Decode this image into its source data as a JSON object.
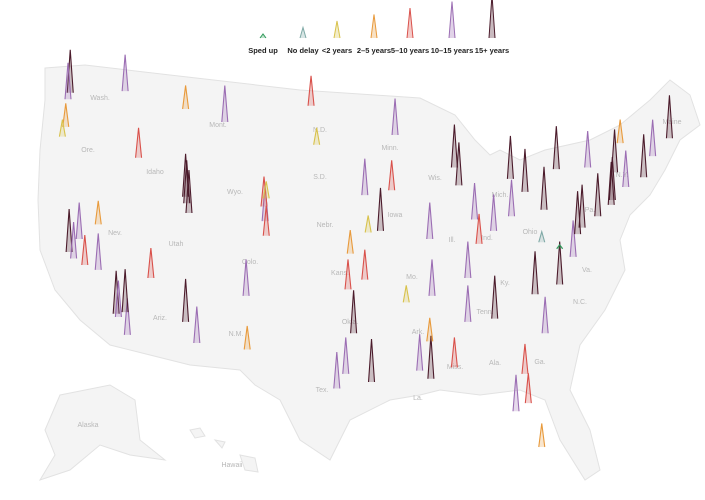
{
  "legend": [
    {
      "label": "Sped up",
      "color": "#2f9a5a"
    },
    {
      "label": "No delay",
      "color": "#7fa9a6"
    },
    {
      "label": "<2 years",
      "color": "#d8c24c"
    },
    {
      "label": "2–5 years",
      "color": "#e89a3c"
    },
    {
      "label": "5–10 years",
      "color": "#d9504a"
    },
    {
      "label": "10–15 years",
      "color": "#9b6db3"
    },
    {
      "label": "15+ years",
      "color": "#4b1b2b"
    }
  ],
  "states": [
    "Wash.",
    "Ore.",
    "Idaho",
    "Mont.",
    "Wyo.",
    "Nev.",
    "Utah",
    "Colo.",
    "N.D.",
    "S.D.",
    "Nebr.",
    "Kans.",
    "Minn.",
    "Iowa",
    "Mo.",
    "Okla.",
    "Ariz.",
    "N.M.",
    "Tex.",
    "Ark.",
    "La.",
    "Miss.",
    "Ala.",
    "Ga.",
    "Ill.",
    "Ind.",
    "Ohio",
    "Ky.",
    "Tenn.",
    "Pa.",
    "N.Y.",
    "Va.",
    "N.C.",
    "Maine",
    "Mich.",
    "Wis.",
    "Alaska",
    "Hawaii"
  ],
  "markers": [
    {
      "lon": -122.3,
      "lat": 47.6,
      "delay": 6
    },
    {
      "lon": -122.5,
      "lat": 47.2,
      "delay": 5
    },
    {
      "lon": -117.4,
      "lat": 47.7,
      "delay": 5
    },
    {
      "lon": -122.7,
      "lat": 45.5,
      "delay": 3
    },
    {
      "lon": -123,
      "lat": 44.9,
      "delay": 2
    },
    {
      "lon": -116.2,
      "lat": 43.6,
      "delay": 4
    },
    {
      "lon": -111.9,
      "lat": 40.8,
      "delay": 6
    },
    {
      "lon": -111.7,
      "lat": 40.2,
      "delay": 6
    },
    {
      "lon": -112,
      "lat": 41.2,
      "delay": 6
    },
    {
      "lon": -122.4,
      "lat": 37.8,
      "delay": 6
    },
    {
      "lon": -122,
      "lat": 37.4,
      "delay": 5
    },
    {
      "lon": -121.5,
      "lat": 38.6,
      "delay": 5
    },
    {
      "lon": -121,
      "lat": 37,
      "delay": 4
    },
    {
      "lon": -119.8,
      "lat": 36.7,
      "delay": 5
    },
    {
      "lon": -118.2,
      "lat": 34,
      "delay": 6
    },
    {
      "lon": -118,
      "lat": 33.8,
      "delay": 5
    },
    {
      "lon": -117.2,
      "lat": 32.7,
      "delay": 5
    },
    {
      "lon": -117.4,
      "lat": 34.1,
      "delay": 6
    },
    {
      "lon": -115.1,
      "lat": 36.2,
      "delay": 4
    },
    {
      "lon": -119.8,
      "lat": 39.5,
      "delay": 3
    },
    {
      "lon": -112,
      "lat": 33.5,
      "delay": 6
    },
    {
      "lon": -111,
      "lat": 32.2,
      "delay": 5
    },
    {
      "lon": -106.6,
      "lat": 35.1,
      "delay": 5
    },
    {
      "lon": -104.9,
      "lat": 39.7,
      "delay": 5
    },
    {
      "lon": -105,
      "lat": 40.6,
      "delay": 4
    },
    {
      "lon": -104.8,
      "lat": 38.8,
      "delay": 4
    },
    {
      "lon": -106.5,
      "lat": 31.8,
      "delay": 3
    },
    {
      "lon": -97,
      "lat": 32.8,
      "delay": 6
    },
    {
      "lon": -95.4,
      "lat": 29.8,
      "delay": 6
    },
    {
      "lon": -98.5,
      "lat": 29.4,
      "delay": 5
    },
    {
      "lon": -97.7,
      "lat": 30.3,
      "delay": 5
    },
    {
      "lon": -97.5,
      "lat": 35.5,
      "delay": 4
    },
    {
      "lon": -96,
      "lat": 36.1,
      "delay": 4
    },
    {
      "lon": -94.6,
      "lat": 39.1,
      "delay": 6
    },
    {
      "lon": -90.2,
      "lat": 38.6,
      "delay": 5
    },
    {
      "lon": -96,
      "lat": 41.3,
      "delay": 5
    },
    {
      "lon": -93.6,
      "lat": 41.6,
      "delay": 4
    },
    {
      "lon": -93.3,
      "lat": 45,
      "delay": 5
    },
    {
      "lon": -100.8,
      "lat": 46.8,
      "delay": 4
    },
    {
      "lon": -87.6,
      "lat": 41.9,
      "delay": 6
    },
    {
      "lon": -88,
      "lat": 43,
      "delay": 6
    },
    {
      "lon": -83,
      "lat": 42.3,
      "delay": 6
    },
    {
      "lon": -86.2,
      "lat": 39.8,
      "delay": 5
    },
    {
      "lon": -84.5,
      "lat": 39.1,
      "delay": 5
    },
    {
      "lon": -82.9,
      "lat": 40,
      "delay": 5
    },
    {
      "lon": -81.7,
      "lat": 41.5,
      "delay": 6
    },
    {
      "lon": -80,
      "lat": 40.4,
      "delay": 6
    },
    {
      "lon": -85.8,
      "lat": 38.3,
      "delay": 4
    },
    {
      "lon": -86.8,
      "lat": 36.2,
      "delay": 5
    },
    {
      "lon": -90,
      "lat": 35.1,
      "delay": 5
    },
    {
      "lon": -90.1,
      "lat": 30,
      "delay": 6
    },
    {
      "lon": -91.1,
      "lat": 30.5,
      "delay": 5
    },
    {
      "lon": -88,
      "lat": 30.7,
      "delay": 4
    },
    {
      "lon": -86.8,
      "lat": 33.5,
      "delay": 5
    },
    {
      "lon": -84.4,
      "lat": 33.7,
      "delay": 6
    },
    {
      "lon": -81.7,
      "lat": 30.3,
      "delay": 4
    },
    {
      "lon": -80.2,
      "lat": 25.8,
      "delay": 3
    },
    {
      "lon": -82.5,
      "lat": 28,
      "delay": 5
    },
    {
      "lon": -81.4,
      "lat": 28.5,
      "delay": 4
    },
    {
      "lon": -80.8,
      "lat": 35.2,
      "delay": 6
    },
    {
      "lon": -78.6,
      "lat": 35.8,
      "delay": 6
    },
    {
      "lon": -79.9,
      "lat": 32.8,
      "delay": 5
    },
    {
      "lon": -77.4,
      "lat": 37.5,
      "delay": 5
    },
    {
      "lon": -77,
      "lat": 38.9,
      "delay": 6
    },
    {
      "lon": -76.6,
      "lat": 39.3,
      "delay": 6
    },
    {
      "lon": -75.2,
      "lat": 40,
      "delay": 6
    },
    {
      "lon": -74,
      "lat": 40.7,
      "delay": 6
    },
    {
      "lon": -73.9,
      "lat": 41,
      "delay": 6
    },
    {
      "lon": -73.7,
      "lat": 42.7,
      "delay": 6
    },
    {
      "lon": -71.1,
      "lat": 42.4,
      "delay": 6
    },
    {
      "lon": -72.7,
      "lat": 41.8,
      "delay": 5
    },
    {
      "lon": -76.1,
      "lat": 43,
      "delay": 5
    },
    {
      "lon": -78.9,
      "lat": 42.9,
      "delay": 6
    },
    {
      "lon": -70.3,
      "lat": 43.7,
      "delay": 5
    },
    {
      "lon": -68.8,
      "lat": 44.8,
      "delay": 6
    },
    {
      "lon": -73.2,
      "lat": 44.5,
      "delay": 3
    },
    {
      "lon": -80.2,
      "lat": 38.4,
      "delay": 1
    },
    {
      "lon": -78.6,
      "lat": 38,
      "delay": 0
    },
    {
      "lon": -92.3,
      "lat": 34.7,
      "delay": 2
    },
    {
      "lon": -90.2,
      "lat": 32.3,
      "delay": 3
    },
    {
      "lon": -104.8,
      "lat": 41.1,
      "delay": 2
    },
    {
      "lon": -108.5,
      "lat": 45.8,
      "delay": 5
    },
    {
      "lon": -112,
      "lat": 46.6,
      "delay": 3
    },
    {
      "lon": -100.3,
      "lat": 44.4,
      "delay": 2
    },
    {
      "lon": -97.3,
      "lat": 37.7,
      "delay": 3
    },
    {
      "lon": -95.7,
      "lat": 39,
      "delay": 2
    }
  ]
}
